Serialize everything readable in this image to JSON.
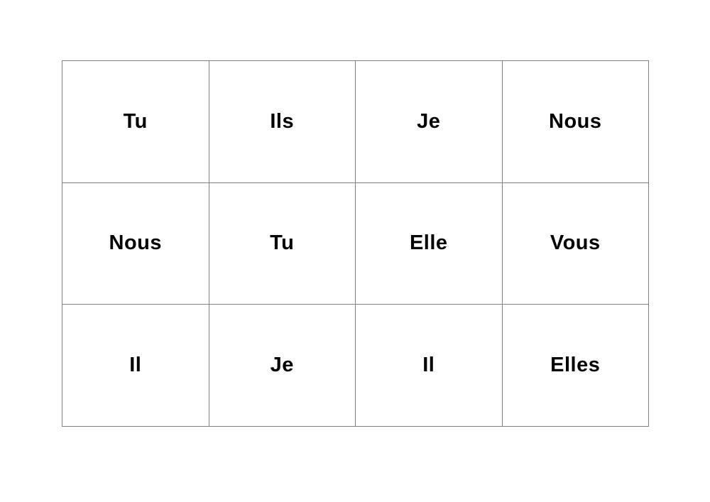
{
  "page": {
    "background_color": "#ffffff",
    "border_color": "#808080",
    "text_color": "#000000",
    "description": "Worksheet page with a 4x3 grid of French subject pronoun flashcards"
  },
  "table": {
    "columns": 4,
    "rows": [
      {
        "cells": [
          "Tu",
          "Ils",
          "Je",
          "Nous"
        ]
      },
      {
        "cells": [
          "Nous",
          "Tu",
          "Elle",
          "Vous"
        ]
      },
      {
        "cells": [
          "Il",
          "Je",
          "Il",
          "Elles"
        ]
      }
    ]
  }
}
